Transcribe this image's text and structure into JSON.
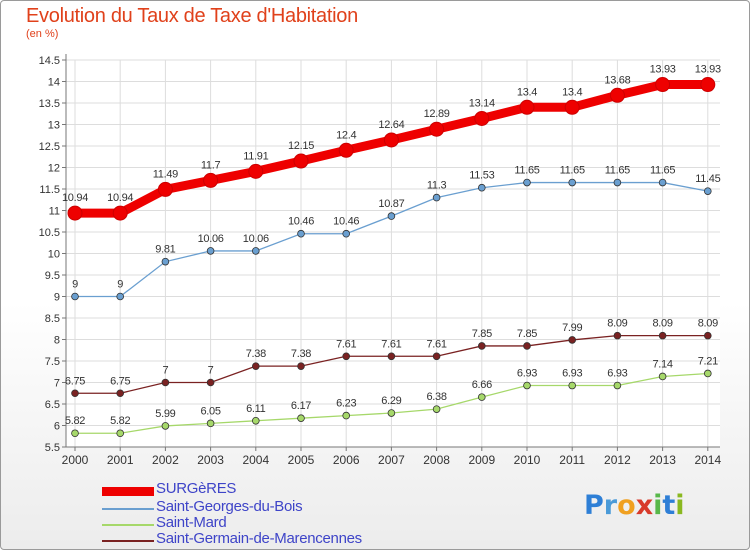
{
  "chart_data": {
    "type": "line",
    "title": "Evolution du Taux de Taxe d'Habitation",
    "ylabel": "(en %)",
    "xlabel": "",
    "x": [
      "2000",
      "2001",
      "2002",
      "2003",
      "2004",
      "2005",
      "2006",
      "2007",
      "2008",
      "2009",
      "2010",
      "2011",
      "2012",
      "2013",
      "2014"
    ],
    "ylim": [
      5.5,
      14.5
    ],
    "yticks": [
      "5.5",
      "6",
      "6.5",
      "7",
      "7.5",
      "8",
      "8.5",
      "9",
      "9.5",
      "10",
      "10.5",
      "11",
      "11.5",
      "12",
      "12.5",
      "13",
      "13.5",
      "14",
      "14.5"
    ],
    "grid": true,
    "legend_position": "bottom-left",
    "series": [
      {
        "name": "SURGèRES",
        "color": "#ee0000",
        "values": [
          10.94,
          10.94,
          11.49,
          11.7,
          11.91,
          12.15,
          12.4,
          12.64,
          12.89,
          13.14,
          13.4,
          13.4,
          13.68,
          13.93,
          13.93
        ],
        "labels": [
          "10.94",
          "10.94",
          "11.49",
          "11.7",
          "11.91",
          "12.15",
          "12.4",
          "12.64",
          "12.89",
          "13.14",
          "13.4",
          "13.4",
          "13.68",
          "13.93",
          "13.93"
        ]
      },
      {
        "name": "Saint-Georges-du-Bois",
        "color": "#6a9fd0",
        "values": [
          9,
          9,
          9.81,
          10.06,
          10.06,
          10.46,
          10.46,
          10.87,
          11.3,
          11.53,
          11.65,
          11.65,
          11.65,
          11.65,
          11.45
        ],
        "labels": [
          "9",
          "9",
          "9.81",
          "10.06",
          "10.06",
          "10.46",
          "10.46",
          "10.87",
          "11.3",
          "11.53",
          "11.65",
          "11.65",
          "11.65",
          "11.65",
          "11.45"
        ]
      },
      {
        "name": "Saint-Mard",
        "color": "#a6d86a",
        "values": [
          5.82,
          5.82,
          5.99,
          6.05,
          6.11,
          6.17,
          6.23,
          6.29,
          6.38,
          6.66,
          6.93,
          6.93,
          6.93,
          7.14,
          7.21
        ],
        "labels": [
          "5.82",
          "5.82",
          "5.99",
          "6.05",
          "6.11",
          "6.17",
          "6.23",
          "6.29",
          "6.38",
          "6.66",
          "6.93",
          "6.93",
          "6.93",
          "7.14",
          "7.21"
        ]
      },
      {
        "name": "Saint-Germain-de-Marencennes",
        "color": "#7a2222",
        "values": [
          6.75,
          6.75,
          7,
          7,
          7.38,
          7.38,
          7.61,
          7.61,
          7.61,
          7.85,
          7.85,
          7.99,
          8.09,
          8.09,
          8.09
        ],
        "labels": [
          "6.75",
          "6.75",
          "7",
          "7",
          "7.38",
          "7.38",
          "7.61",
          "7.61",
          "7.61",
          "7.85",
          "7.85",
          "7.99",
          "8.09",
          "8.09",
          "8.09"
        ]
      }
    ]
  },
  "logo": {
    "letters": [
      "P",
      "r",
      "o",
      "x",
      "i",
      "t",
      "i"
    ],
    "colors": [
      "#2e7fd6",
      "#4a9ad8",
      "#f0a020",
      "#d83a2a",
      "#58b84a",
      "#2e7fd6",
      "#8ab820"
    ]
  }
}
